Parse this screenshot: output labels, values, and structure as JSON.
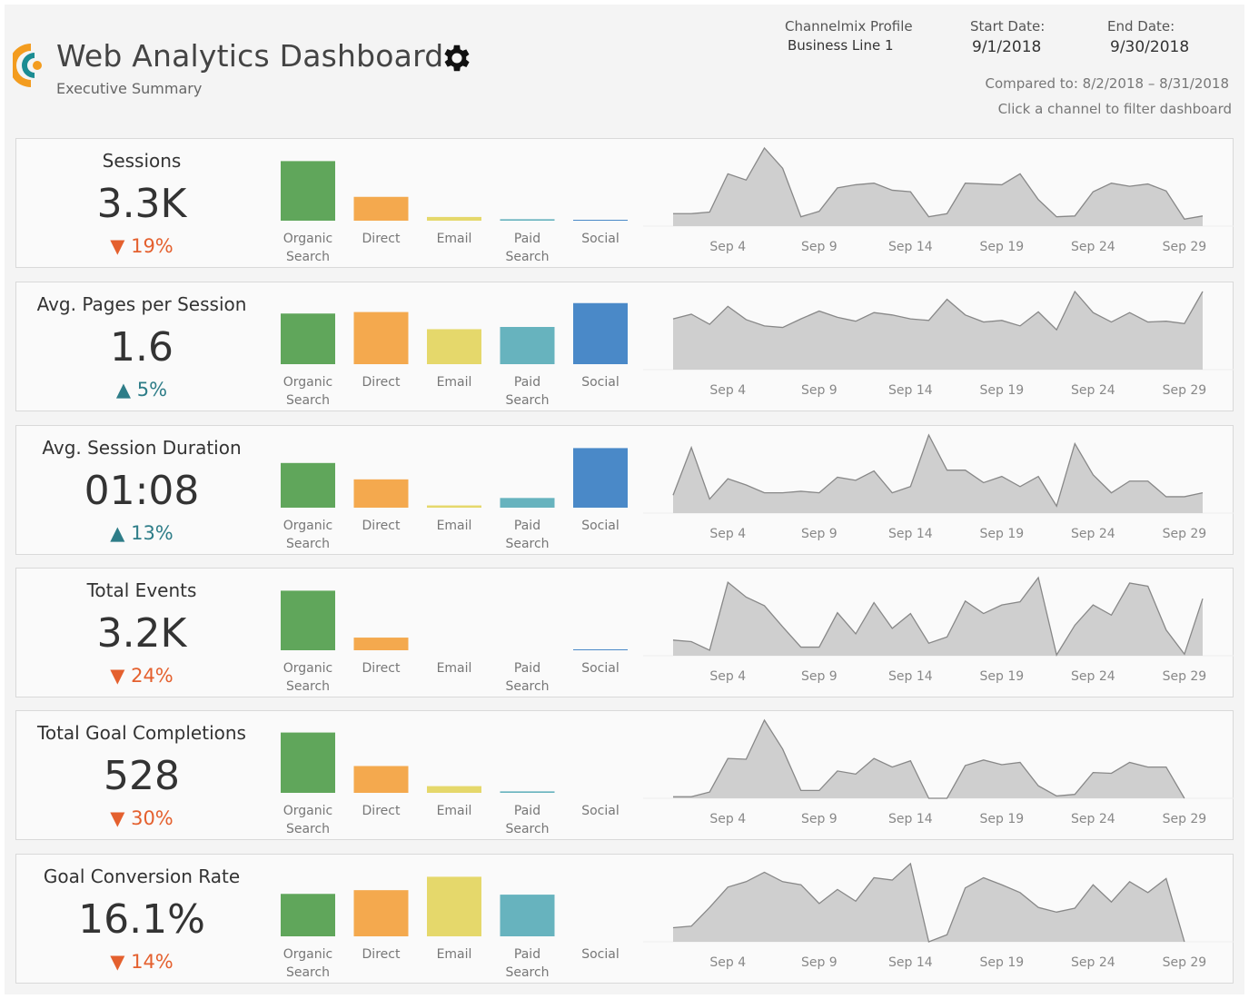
{
  "header": {
    "title": "Web Analytics Dashboard",
    "subtitle": "Executive Summary",
    "settings_icon": "gear-icon",
    "profile_label": "Channelmix Profile",
    "profile_value": "Business Line 1",
    "start_label": "Start Date:",
    "start_value": "9/1/2018",
    "end_label": "End Date:",
    "end_value": "9/30/2018",
    "compared": "Compared to: 8/2/2018 – 8/31/2018",
    "hint": "Click a channel to filter dashboard"
  },
  "colors": {
    "Organic Search": "#60a65b",
    "Direct": "#f4a94e",
    "Email": "#e5d86b",
    "Paid Search": "#67b3be",
    "Social": "#4a89c8",
    "down": "#e4602e",
    "up": "#2e7d88",
    "area": "#cfcfcf"
  },
  "chart_data": {
    "channels": [
      {
        "line1": "Organic",
        "line2": "Search",
        "key": "Organic Search"
      },
      {
        "line1": "Direct",
        "line2": "",
        "key": "Direct"
      },
      {
        "line1": "Email",
        "line2": "",
        "key": "Email"
      },
      {
        "line1": "Paid",
        "line2": "Search",
        "key": "Paid Search"
      },
      {
        "line1": "Social",
        "line2": "",
        "key": "Social"
      }
    ],
    "date_ticks": [
      "Sep 4",
      "Sep 9",
      "Sep 14",
      "Sep 19",
      "Sep 24",
      "Sep 29"
    ],
    "date_tick_days": [
      4,
      9,
      14,
      19,
      24,
      29
    ],
    "days": [
      1,
      30
    ],
    "metrics": [
      {
        "title": "Sessions",
        "value": "3.3K",
        "delta": "19%",
        "direction": "down",
        "bar_type": "bar",
        "bars": [
          80,
          32,
          5,
          2,
          1
        ],
        "trend_type": "area",
        "trend": [
          16,
          16,
          18,
          67,
          59,
          100,
          74,
          12,
          19,
          49,
          53,
          55,
          46,
          44,
          12,
          16,
          55,
          54,
          53,
          67,
          34,
          12,
          13,
          44,
          55,
          51,
          54,
          45,
          9,
          13
        ]
      },
      {
        "title": "Avg. Pages per Session",
        "value": "1.6",
        "delta": "5%",
        "direction": "up",
        "bar_type": "bar",
        "bars": [
          68,
          70,
          47,
          50,
          82
        ],
        "trend_type": "area",
        "trend": [
          65,
          71,
          58,
          81,
          64,
          56,
          54,
          65,
          75,
          67,
          62,
          73,
          70,
          65,
          63,
          90,
          70,
          61,
          63,
          56,
          74,
          51,
          100,
          73,
          61,
          73,
          61,
          62,
          59,
          100
        ]
      },
      {
        "title": "Avg. Session Duration",
        "value": "01:08",
        "delta": "13%",
        "direction": "up",
        "bar_type": "bar",
        "bars": [
          60,
          38,
          3,
          13,
          80
        ],
        "trend_type": "area",
        "trend": [
          23,
          84,
          18,
          44,
          36,
          26,
          26,
          28,
          26,
          46,
          42,
          54,
          26,
          34,
          100,
          55,
          55,
          39,
          47,
          34,
          47,
          9,
          89,
          49,
          26,
          41,
          41,
          21,
          21,
          26
        ]
      },
      {
        "title": "Total Events",
        "value": "3.2K",
        "delta": "24%",
        "direction": "down",
        "bar_type": "bar",
        "bars": [
          80,
          17,
          0,
          0,
          1
        ],
        "trend_type": "area",
        "trend": [
          20,
          18,
          7,
          94,
          75,
          64,
          37,
          11,
          11,
          55,
          28,
          68,
          35,
          54,
          16,
          24,
          70,
          54,
          65,
          69,
          100,
          1,
          39,
          65,
          52,
          93,
          89,
          33,
          2,
          73
        ]
      },
      {
        "title": "Total Goal Completions",
        "value": "528",
        "delta": "30%",
        "direction": "down",
        "bar_type": "bar",
        "bars": [
          81,
          36,
          9,
          2,
          0
        ],
        "trend_type": "area",
        "trend": [
          2,
          2,
          8,
          51,
          50,
          100,
          63,
          10,
          10,
          35,
          31,
          51,
          40,
          48,
          0,
          0,
          42,
          49,
          43,
          46,
          16,
          3,
          5,
          33,
          32,
          46,
          40,
          40,
          0,
          null
        ]
      },
      {
        "title": "Goal Conversion Rate",
        "value": "16.1%",
        "delta": "14%",
        "direction": "down",
        "bar_type": "bar",
        "bars": [
          57,
          62,
          80,
          56,
          0
        ],
        "trend_type": "area",
        "trend": [
          18,
          20,
          44,
          70,
          77,
          89,
          77,
          73,
          49,
          67,
          52,
          82,
          79,
          100,
          0,
          9,
          69,
          82,
          73,
          63,
          44,
          38,
          43,
          73,
          51,
          77,
          63,
          81,
          0,
          null
        ]
      }
    ]
  }
}
